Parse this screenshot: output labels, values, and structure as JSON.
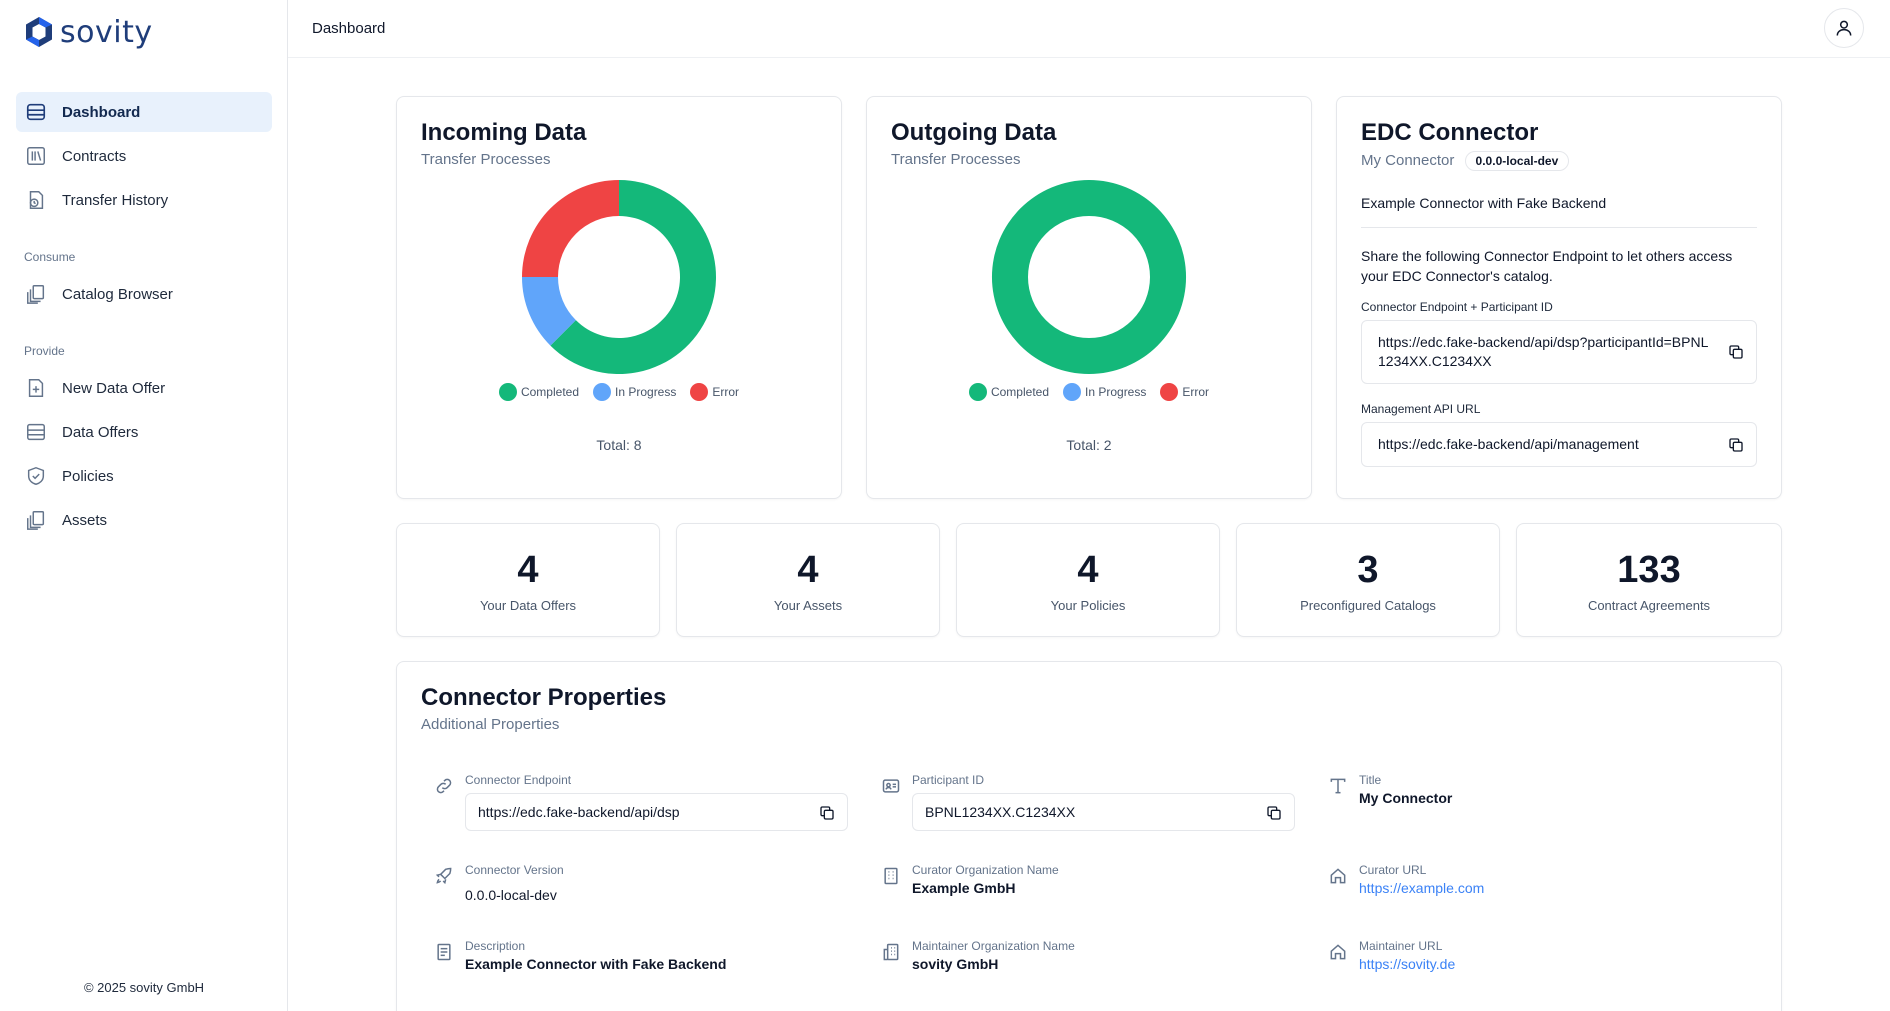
{
  "app": {
    "logo_text": "sovity",
    "copyright": "© 2025 sovity GmbH"
  },
  "sidebar": {
    "items": [
      {
        "label": "Dashboard",
        "icon": "dashboard-icon",
        "active": true
      },
      {
        "label": "Contracts",
        "icon": "contracts-icon"
      },
      {
        "label": "Transfer History",
        "icon": "transfer-history-icon"
      }
    ],
    "consume": {
      "section": "Consume",
      "items": [
        {
          "label": "Catalog Browser",
          "icon": "catalog-icon"
        }
      ]
    },
    "provide": {
      "section": "Provide",
      "items": [
        {
          "label": "New Data Offer",
          "icon": "new-document-icon"
        },
        {
          "label": "Data Offers",
          "icon": "data-offers-icon"
        },
        {
          "label": "Policies",
          "icon": "shield-icon"
        },
        {
          "label": "Assets",
          "icon": "assets-icon"
        }
      ]
    }
  },
  "header": {
    "title": "Dashboard",
    "user_icon": "user-icon"
  },
  "incoming": {
    "title": "Incoming Data",
    "subtitle": "Transfer Processes",
    "total": "Total: 8"
  },
  "outgoing": {
    "title": "Outgoing Data",
    "subtitle": "Transfer Processes",
    "total": "Total: 2"
  },
  "legend": {
    "completed": "Completed",
    "in_progress": "In Progress",
    "error": "Error"
  },
  "colors": {
    "completed": "#14b87a",
    "in_progress": "#60a5fa",
    "error": "#ef4444",
    "link": "#3b82f6",
    "active_nav_bg": "#e8f1fc"
  },
  "chart_data": [
    {
      "type": "pie",
      "categories": [
        "Completed",
        "In Progress",
        "Error"
      ],
      "values": [
        5,
        1,
        2
      ]
    },
    {
      "type": "pie",
      "categories": [
        "Completed",
        "In Progress",
        "Error"
      ],
      "values": [
        2,
        0,
        0
      ]
    }
  ],
  "edc": {
    "title": "EDC Connector",
    "name": "My Connector",
    "version": "0.0.0-local-dev",
    "description": "Example Connector with Fake Backend",
    "share_text": "Share the following Connector Endpoint to let others access your EDC Connector's catalog.",
    "endpoint_label": "Connector Endpoint + Participant ID",
    "endpoint_value": "https://edc.fake-backend/api/dsp?participantId=BPNL1234XX.C1234XX",
    "mgmt_label": "Management API URL",
    "mgmt_value": "https://edc.fake-backend/api/management"
  },
  "stats": [
    {
      "value": "4",
      "label": "Your Data Offers"
    },
    {
      "value": "4",
      "label": "Your Assets"
    },
    {
      "value": "4",
      "label": "Your Policies"
    },
    {
      "value": "3",
      "label": "Preconfigured Catalogs"
    },
    {
      "value": "133",
      "label": "Contract Agreements"
    }
  ],
  "props": {
    "title": "Connector Properties",
    "subtitle": "Additional Properties",
    "endpoint": {
      "label": "Connector Endpoint",
      "value": "https://edc.fake-backend/api/dsp"
    },
    "participant": {
      "label": "Participant ID",
      "value": "BPNL1234XX.C1234XX"
    },
    "title_prop": {
      "label": "Title",
      "value": "My Connector"
    },
    "version": {
      "label": "Connector Version",
      "value": "0.0.0-local-dev"
    },
    "curator_org": {
      "label": "Curator Organization Name",
      "value": "Example GmbH"
    },
    "curator_url": {
      "label": "Curator URL",
      "value": "https://example.com"
    },
    "description": {
      "label": "Description",
      "value": "Example Connector with Fake Backend"
    },
    "maintainer_org": {
      "label": "Maintainer Organization Name",
      "value": "sovity GmbH"
    },
    "maintainer_url": {
      "label": "Maintainer URL",
      "value": "https://sovity.de"
    }
  }
}
